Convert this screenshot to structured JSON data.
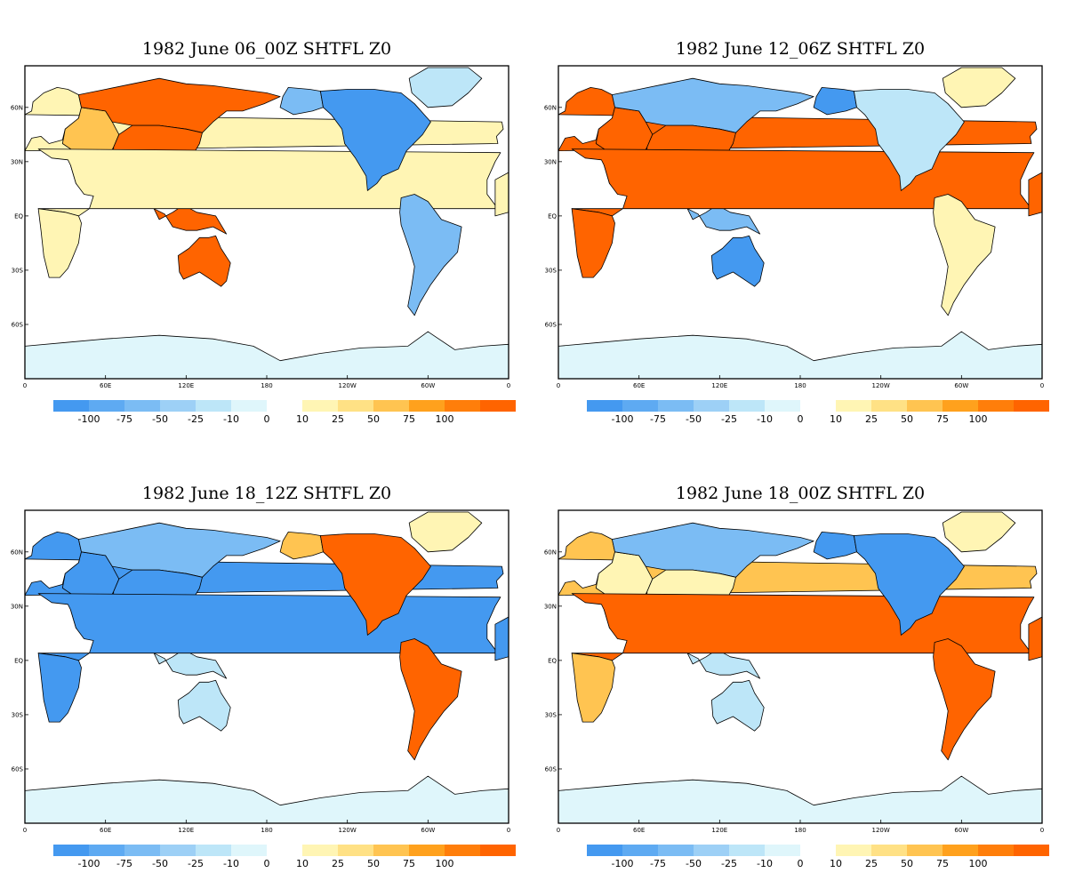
{
  "colorbar": {
    "negative": {
      "colors": [
        "#4499f0",
        "#5eaaf2",
        "#7bbcf4",
        "#9dd0f6",
        "#bde6f8",
        "#dff6fb"
      ],
      "labels": [
        "-100",
        "-75",
        "-50",
        "-25",
        "-10",
        "0"
      ]
    },
    "positive": {
      "colors": [
        "#fff5b4",
        "#ffe185",
        "#ffc451",
        "#ffa11d",
        "#ff7e0a",
        "#ff6400"
      ],
      "labels": [
        "10",
        "25",
        "50",
        "75",
        "100"
      ]
    }
  },
  "axes": {
    "x_ticks": [
      "0",
      "60E",
      "120E",
      "180",
      "120W",
      "60W",
      "0"
    ],
    "y_ticks": [
      "60N",
      "30N",
      "EQ",
      "30S",
      "60S"
    ]
  },
  "colors": {
    "strong_neg": "#4499f0",
    "mid_neg": "#7bbcf4",
    "light_neg": "#bde6f8",
    "pale": "#dff6fb",
    "light_pos": "#fff5b4",
    "mid_pos": "#ffc451",
    "strong_pos": "#ff6400"
  },
  "panels": [
    {
      "title": "1982 June 06_00Z SHTFL Z0",
      "regions": {
        "europe": "light_pos",
        "west_asia": "mid_pos",
        "siberia": "strong_pos",
        "south_asia": "strong_pos",
        "africa_north": "light_pos",
        "africa_south": "light_pos",
        "australia": "strong_pos",
        "se_asia": "strong_pos",
        "alaska": "mid_neg",
        "north_america": "strong_neg",
        "greenland": "light_neg",
        "south_america": "mid_neg",
        "antarctica": "pale"
      }
    },
    {
      "title": "1982 June 12_06Z SHTFL Z0",
      "regions": {
        "europe": "strong_pos",
        "west_asia": "strong_pos",
        "siberia": "mid_neg",
        "south_asia": "strong_pos",
        "africa_north": "strong_pos",
        "africa_south": "strong_pos",
        "australia": "strong_neg",
        "se_asia": "mid_neg",
        "alaska": "strong_neg",
        "north_america": "light_neg",
        "greenland": "light_pos",
        "south_america": "light_pos",
        "antarctica": "pale"
      }
    },
    {
      "title": "1982 June 18_12Z SHTFL Z0",
      "regions": {
        "europe": "strong_neg",
        "west_asia": "strong_neg",
        "siberia": "mid_neg",
        "south_asia": "strong_neg",
        "africa_north": "strong_neg",
        "africa_south": "strong_neg",
        "australia": "light_neg",
        "se_asia": "light_neg",
        "alaska": "mid_pos",
        "north_america": "strong_pos",
        "greenland": "light_pos",
        "south_america": "strong_pos",
        "antarctica": "pale"
      }
    },
    {
      "title": "1982 June 18_00Z SHTFL Z0",
      "regions": {
        "europe": "mid_pos",
        "west_asia": "light_pos",
        "siberia": "mid_neg",
        "south_asia": "light_pos",
        "africa_north": "strong_pos",
        "africa_south": "mid_pos",
        "australia": "light_neg",
        "se_asia": "light_neg",
        "alaska": "strong_neg",
        "north_america": "strong_neg",
        "greenland": "light_pos",
        "south_america": "strong_pos",
        "antarctica": "pale"
      }
    }
  ]
}
